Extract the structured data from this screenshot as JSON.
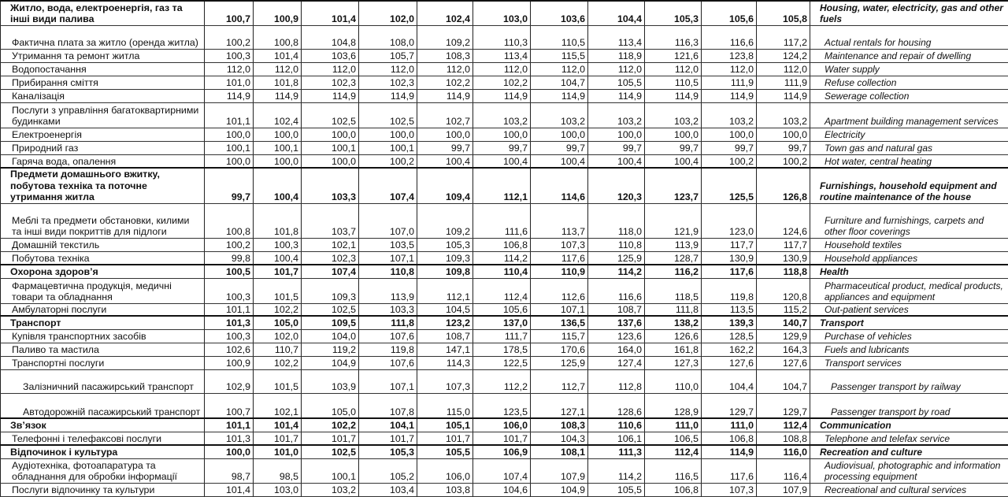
{
  "table": {
    "rows": [
      {
        "level": 0,
        "uk": "Житло, вода, електроенергія, газ та інші види палива",
        "values": [
          "100,7",
          "100,9",
          "101,4",
          "102,0",
          "102,4",
          "103,0",
          "103,6",
          "104,4",
          "105,3",
          "105,6",
          "105,8"
        ],
        "en": "Housing, water, electricity, gas and other fuels"
      },
      {
        "level": 1,
        "uk": "Фактична плата за житло (оренда житла)",
        "values": [
          "100,2",
          "100,8",
          "104,8",
          "108,0",
          "109,2",
          "110,3",
          "110,5",
          "113,4",
          "116,3",
          "116,6",
          "117,2"
        ],
        "en": "Actual rentals for housing"
      },
      {
        "level": 1,
        "uk": "Утримання та ремонт житла",
        "values": [
          "100,3",
          "101,4",
          "103,6",
          "105,7",
          "108,3",
          "113,4",
          "115,5",
          "118,9",
          "121,6",
          "123,8",
          "124,2"
        ],
        "en": "Maintenance and repair of dwelling"
      },
      {
        "level": 1,
        "uk": "Водопостачання",
        "values": [
          "112,0",
          "112,0",
          "112,0",
          "112,0",
          "112,0",
          "112,0",
          "112,0",
          "112,0",
          "112,0",
          "112,0",
          "112,0"
        ],
        "en": "Water supply"
      },
      {
        "level": 1,
        "uk": "Прибирання сміття",
        "values": [
          "101,0",
          "101,8",
          "102,3",
          "102,3",
          "102,2",
          "102,2",
          "104,7",
          "105,5",
          "110,5",
          "111,9",
          "111,9"
        ],
        "en": "Refuse collection"
      },
      {
        "level": 1,
        "uk": "Каналізація",
        "values": [
          "114,9",
          "114,9",
          "114,9",
          "114,9",
          "114,9",
          "114,9",
          "114,9",
          "114,9",
          "114,9",
          "114,9",
          "114,9"
        ],
        "en": "Sewerage collection"
      },
      {
        "level": 1,
        "uk": "Послуги з управління багатоквартирними будинками",
        "values": [
          "101,1",
          "102,4",
          "102,5",
          "102,5",
          "102,7",
          "103,2",
          "103,2",
          "103,2",
          "103,2",
          "103,2",
          "103,2"
        ],
        "en": "Apartment building management services"
      },
      {
        "level": 1,
        "uk": "Електроенергія",
        "values": [
          "100,0",
          "100,0",
          "100,0",
          "100,0",
          "100,0",
          "100,0",
          "100,0",
          "100,0",
          "100,0",
          "100,0",
          "100,0"
        ],
        "en": "Electricity"
      },
      {
        "level": 1,
        "uk": "Природний газ",
        "values": [
          "100,1",
          "100,1",
          "100,1",
          "100,1",
          "99,7",
          "99,7",
          "99,7",
          "99,7",
          "99,7",
          "99,7",
          "99,7"
        ],
        "en": "Town gas and natural gas"
      },
      {
        "level": 1,
        "uk": "Гаряча вода, опалення",
        "values": [
          "100,0",
          "100,0",
          "100,0",
          "100,2",
          "100,4",
          "100,4",
          "100,4",
          "100,4",
          "100,4",
          "100,2",
          "100,2"
        ],
        "en": "Hot water, central heating"
      },
      {
        "level": 0,
        "uk": "Предмети домашнього вжитку, побутова техніка та поточне утримання житла",
        "values": [
          "99,7",
          "100,4",
          "103,3",
          "107,4",
          "109,4",
          "112,1",
          "114,6",
          "120,3",
          "123,7",
          "125,5",
          "126,8"
        ],
        "en": "Furnishings, household equipment and routine maintenance of the house"
      },
      {
        "level": 1,
        "uk": "Меблі та предмети обстановки, килими та інші види покриттів для підлоги",
        "values": [
          "100,8",
          "101,8",
          "103,7",
          "107,0",
          "109,2",
          "111,6",
          "113,7",
          "118,0",
          "121,9",
          "123,0",
          "124,6"
        ],
        "en": "Furniture and furnishings, carpets and other floor coverings"
      },
      {
        "level": 1,
        "uk": "Домашній текстиль",
        "values": [
          "100,2",
          "100,3",
          "102,1",
          "103,5",
          "105,3",
          "106,8",
          "107,3",
          "110,8",
          "113,9",
          "117,7",
          "117,7"
        ],
        "en": "Household textiles"
      },
      {
        "level": 1,
        "uk": "Побутова техніка",
        "values": [
          "99,8",
          "100,4",
          "102,3",
          "107,1",
          "109,3",
          "114,2",
          "117,6",
          "125,9",
          "128,7",
          "130,9",
          "130,9"
        ],
        "en": "Household appliances"
      },
      {
        "level": 0,
        "uk": "Охорона здоров’я",
        "values": [
          "100,5",
          "101,7",
          "107,4",
          "110,8",
          "109,8",
          "110,4",
          "110,9",
          "114,2",
          "116,2",
          "117,6",
          "118,8"
        ],
        "en": "Health"
      },
      {
        "level": 1,
        "uk": "Фармацевтична продукція, медичні товари та обладнання",
        "values": [
          "100,3",
          "101,5",
          "109,3",
          "113,9",
          "112,1",
          "112,4",
          "112,6",
          "116,6",
          "118,5",
          "119,8",
          "120,8"
        ],
        "en": "Pharmaceutical product, medical products, appliances and equipment"
      },
      {
        "level": 1,
        "uk": "Амбулаторні послуги",
        "values": [
          "101,1",
          "102,2",
          "102,5",
          "103,3",
          "104,5",
          "105,6",
          "107,1",
          "108,7",
          "111,8",
          "113,5",
          "115,2"
        ],
        "en": "Out-patient services"
      },
      {
        "level": 0,
        "uk": "Транспорт",
        "values": [
          "101,3",
          "105,0",
          "109,5",
          "111,8",
          "123,2",
          "137,0",
          "136,5",
          "137,6",
          "138,2",
          "139,3",
          "140,7"
        ],
        "en": "Transport"
      },
      {
        "level": 1,
        "uk": "Купівля транспортних засобів",
        "values": [
          "100,3",
          "102,0",
          "104,0",
          "107,6",
          "108,7",
          "111,7",
          "115,7",
          "123,6",
          "126,6",
          "128,5",
          "129,9"
        ],
        "en": "Purchase of vehicles"
      },
      {
        "level": 1,
        "uk": "Паливо та мастила",
        "values": [
          "102,6",
          "110,7",
          "119,2",
          "119,8",
          "147,1",
          "178,5",
          "170,6",
          "164,0",
          "161,8",
          "162,2",
          "164,3"
        ],
        "en": "Fuels and lubricants"
      },
      {
        "level": 1,
        "uk": "Транспортні послуги",
        "values": [
          "100,9",
          "102,2",
          "104,9",
          "107,6",
          "114,3",
          "122,5",
          "125,9",
          "127,4",
          "127,3",
          "127,6",
          "127,6"
        ],
        "en": "Transport services"
      },
      {
        "level": 2,
        "uk": "Залізничний пасажирський транспорт",
        "values": [
          "102,9",
          "101,5",
          "103,9",
          "107,1",
          "107,3",
          "112,2",
          "112,7",
          "112,8",
          "110,0",
          "104,4",
          "104,7"
        ],
        "en": "Passenger transport by railway"
      },
      {
        "level": 2,
        "uk": "Автодорожній пасажирський транспорт",
        "values": [
          "100,7",
          "102,1",
          "105,0",
          "107,8",
          "115,0",
          "123,5",
          "127,1",
          "128,6",
          "128,9",
          "129,7",
          "129,7"
        ],
        "en": "Passenger transport by road"
      },
      {
        "level": 0,
        "uk": "Зв’язок",
        "values": [
          "101,1",
          "101,4",
          "102,2",
          "104,1",
          "105,1",
          "106,0",
          "108,3",
          "110,6",
          "111,0",
          "111,0",
          "112,4"
        ],
        "en": "Communication"
      },
      {
        "level": 1,
        "uk": "Телефонні і телефаксові послуги",
        "values": [
          "101,3",
          "101,7",
          "101,7",
          "101,7",
          "101,7",
          "101,7",
          "104,3",
          "106,1",
          "106,5",
          "106,8",
          "108,8"
        ],
        "en": "Telephone and telefax service"
      },
      {
        "level": 0,
        "uk": "Відпочинок і культура",
        "values": [
          "100,0",
          "101,0",
          "102,5",
          "105,3",
          "105,5",
          "106,9",
          "108,1",
          "111,3",
          "112,4",
          "114,9",
          "116,0"
        ],
        "en": "Recreation and culture"
      },
      {
        "level": 1,
        "uk": "Аудіотехніка, фотоапаратура та обладнання для обробки інформації",
        "values": [
          "98,7",
          "98,5",
          "100,1",
          "105,2",
          "106,0",
          "107,4",
          "107,9",
          "114,2",
          "116,5",
          "117,6",
          "116,4"
        ],
        "en": "Audiovisual, photographic and information processing equipment"
      },
      {
        "level": 1,
        "uk": "Послуги відпочинку та культури",
        "values": [
          "101,4",
          "103,0",
          "103,2",
          "103,4",
          "103,8",
          "104,6",
          "104,9",
          "105,5",
          "106,8",
          "107,3",
          "107,9"
        ],
        "en": "Recreational and cultural services"
      }
    ]
  }
}
